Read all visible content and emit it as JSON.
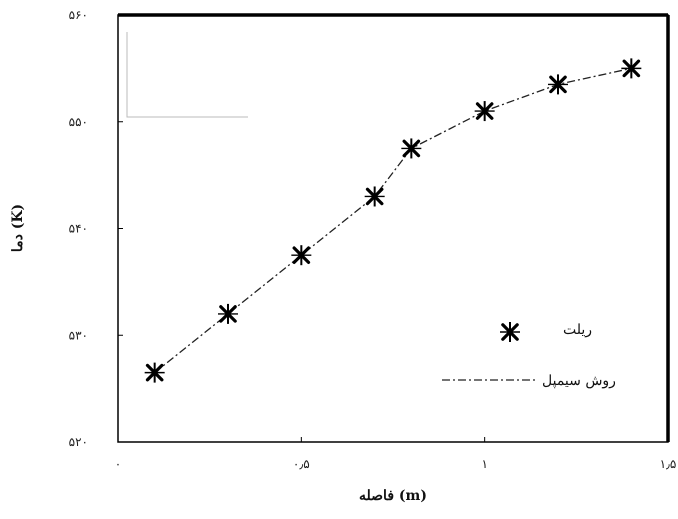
{
  "chart_data": {
    "type": "scatter",
    "xlabel": "فاصله (m)",
    "ylabel": "دما (K)",
    "xlim": [
      0,
      1.5
    ],
    "ylim": [
      520,
      560
    ],
    "x_ticks": [
      "۰",
      "۰٫۵",
      "۱",
      "۱٫۵"
    ],
    "y_ticks": [
      "۵۲۰",
      "۵۳۰",
      "۵۴۰",
      "۵۵۰",
      "۵۶۰"
    ],
    "grid": false,
    "legend_position": "bottom-right",
    "series": [
      {
        "name": "ریلت",
        "style": "markers",
        "marker": "asterisk-x",
        "x": [
          0.1,
          0.3,
          0.5,
          0.7,
          0.8,
          1.0,
          1.2,
          1.4
        ],
        "y": [
          526.5,
          532.0,
          537.5,
          543.0,
          547.5,
          551.0,
          553.5,
          555.0
        ]
      },
      {
        "name": "روش سیمپل",
        "style": "dash-dot line",
        "x": [
          0.1,
          0.3,
          0.5,
          0.7,
          0.8,
          1.0,
          1.2,
          1.4
        ],
        "y": [
          526.5,
          532.0,
          537.5,
          543.0,
          547.5,
          551.0,
          553.5,
          555.0
        ]
      }
    ]
  }
}
